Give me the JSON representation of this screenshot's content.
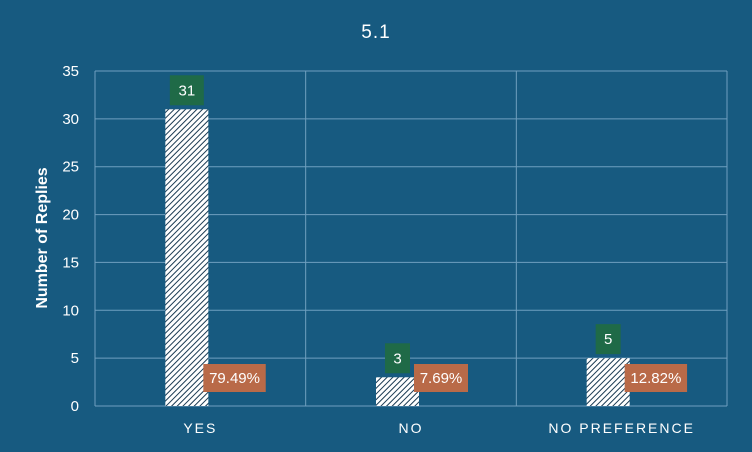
{
  "chart_data": {
    "type": "bar",
    "title": "5.1",
    "xlabel": "",
    "ylabel": "Number of Replies",
    "categories": [
      "YES",
      "NO",
      "NO PREFERENCE"
    ],
    "values": [
      31,
      3,
      5
    ],
    "percent_labels": [
      "79.49%",
      "7.69%",
      "12.82%"
    ],
    "value_labels": [
      "31",
      "3",
      "5"
    ],
    "ylim": [
      0,
      35
    ],
    "yticks": [
      "0",
      "5",
      "10",
      "15",
      "20",
      "25",
      "30",
      "35"
    ],
    "grid": true,
    "legend": "none"
  },
  "colors": {
    "background": "#175a80",
    "bar_fill": "#ffffff",
    "bar_hatch": "#1a3a52",
    "count_label_bg": "#1f6a47",
    "percent_label_bg": "#b96a48",
    "grid": "#6f9fbf"
  }
}
